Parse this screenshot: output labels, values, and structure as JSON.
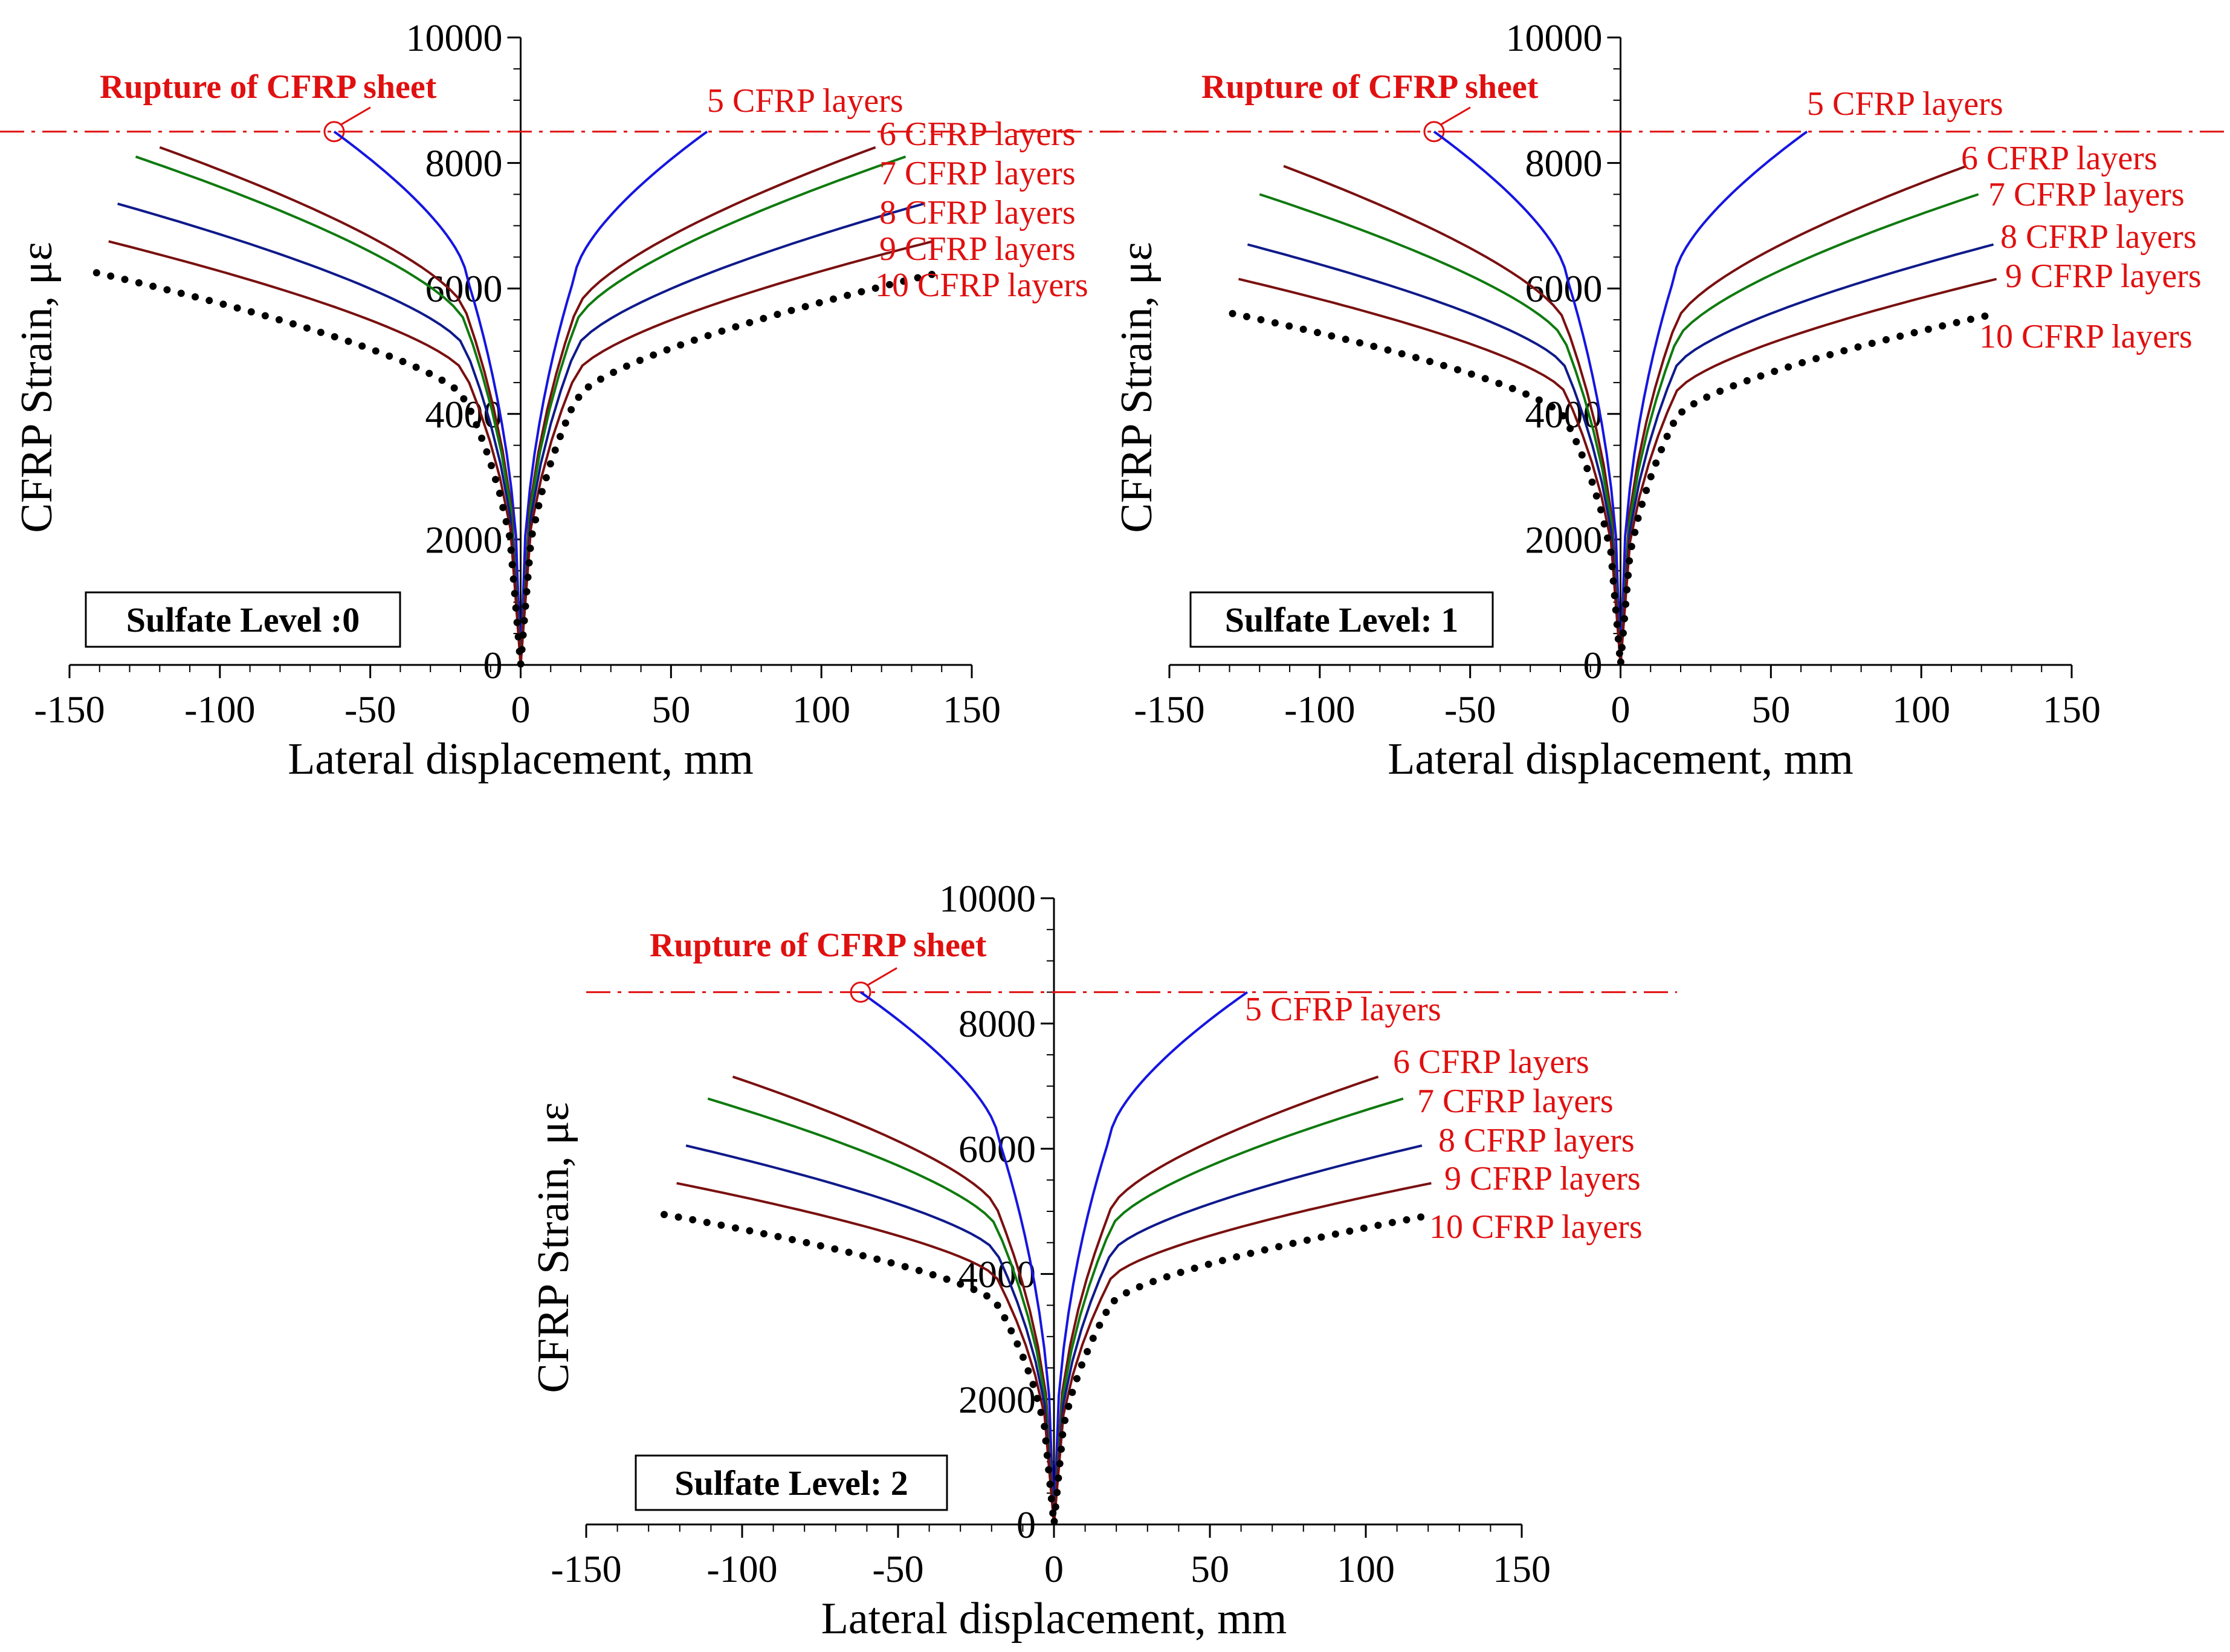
{
  "figure": {
    "rupture_label": "Rupture of CFRP sheet",
    "x_tick_labels": [
      "-150",
      "-100",
      "-50",
      "0",
      "50",
      "100",
      "150"
    ],
    "y_tick_labels": [
      "0",
      "2000",
      "4000",
      "6000",
      "8000",
      "10000"
    ]
  },
  "chart_data": [
    {
      "type": "line",
      "title": "Sulfate Level :0",
      "xlabel": "Lateral displacement, mm",
      "ylabel": "CFRP Strain, με",
      "xlim": [
        -150,
        150
      ],
      "ylim": [
        0,
        10000
      ],
      "rupture_strain": 8500,
      "rupture_marker": {
        "x": -62,
        "y": 8500
      },
      "series": [
        {
          "name": "5 CFRP layers",
          "color": "#1515e0",
          "style": "solid",
          "x_neg": -62,
          "y_end_neg": 8500,
          "x_pos": 62,
          "y_end_pos": 8500,
          "y_knee": 6200
        },
        {
          "name": "6 CFRP layers",
          "color": "#7a1010",
          "style": "solid",
          "x_neg": -120,
          "y_end_neg": 8250,
          "x_pos": 118,
          "y_end_pos": 8250,
          "y_knee": 5600
        },
        {
          "name": "7 CFRP layers",
          "color": "#0f7a0f",
          "style": "solid",
          "x_neg": -128,
          "y_end_neg": 8100,
          "x_pos": 128,
          "y_end_pos": 8100,
          "y_knee": 5400
        },
        {
          "name": "8 CFRP layers",
          "color": "#0f1a8a",
          "style": "solid",
          "x_neg": -134,
          "y_end_neg": 7350,
          "x_pos": 134,
          "y_end_pos": 7350,
          "y_knee": 5000
        },
        {
          "name": "9 CFRP layers",
          "color": "#7a1010",
          "style": "solid",
          "x_neg": -137,
          "y_end_neg": 6750,
          "x_pos": 137,
          "y_end_pos": 6750,
          "y_knee": 4600
        },
        {
          "name": "10 CFRP layers",
          "color": "#000000",
          "style": "dotted",
          "x_neg": -141,
          "y_end_neg": 6250,
          "x_pos": 139,
          "y_end_pos": 6250,
          "y_knee": 4200
        }
      ]
    },
    {
      "type": "line",
      "title": "Sulfate Level: 1",
      "xlabel": "Lateral displacement, mm",
      "ylabel": "CFRP Strain, με",
      "xlim": [
        -150,
        150
      ],
      "ylim": [
        0,
        10000
      ],
      "rupture_strain": 8500,
      "rupture_marker": {
        "x": -62,
        "y": 8500
      },
      "series": [
        {
          "name": "5 CFRP layers",
          "color": "#1515e0",
          "style": "solid",
          "x_neg": -62,
          "y_end_neg": 8500,
          "x_pos": 62,
          "y_end_pos": 8500,
          "y_knee": 6200
        },
        {
          "name": "6 CFRP layers",
          "color": "#7a1010",
          "style": "solid",
          "x_neg": -112,
          "y_end_neg": 7950,
          "x_pos": 115,
          "y_end_pos": 7950,
          "y_knee": 5400
        },
        {
          "name": "7 CFRP layers",
          "color": "#0f7a0f",
          "style": "solid",
          "x_neg": -120,
          "y_end_neg": 7500,
          "x_pos": 119,
          "y_end_pos": 7500,
          "y_knee": 5100
        },
        {
          "name": "8 CFRP layers",
          "color": "#0f1a8a",
          "style": "solid",
          "x_neg": -124,
          "y_end_neg": 6700,
          "x_pos": 124,
          "y_end_pos": 6700,
          "y_knee": 4700
        },
        {
          "name": "9 CFRP layers",
          "color": "#7a1010",
          "style": "solid",
          "x_neg": -127,
          "y_end_neg": 6150,
          "x_pos": 125,
          "y_end_pos": 6150,
          "y_knee": 4300
        },
        {
          "name": "10 CFRP layers",
          "color": "#000000",
          "style": "dotted",
          "x_neg": -129,
          "y_end_neg": 5600,
          "x_pos": 125,
          "y_end_pos": 5600,
          "y_knee": 3900
        }
      ]
    },
    {
      "type": "line",
      "title": "Sulfate Level: 2",
      "xlabel": "Lateral displacement, mm",
      "ylabel": "CFRP Strain, με",
      "xlim": [
        -150,
        150
      ],
      "ylim": [
        0,
        10000
      ],
      "rupture_strain": 8500,
      "rupture_marker": {
        "x": -62,
        "y": 8500
      },
      "series": [
        {
          "name": "5 CFRP layers",
          "color": "#1515e0",
          "style": "solid",
          "x_neg": -62,
          "y_end_neg": 8500,
          "x_pos": 62,
          "y_end_pos": 8500,
          "y_knee": 6200
        },
        {
          "name": "6 CFRP layers",
          "color": "#7a1010",
          "style": "solid",
          "x_neg": -103,
          "y_end_neg": 7150,
          "x_pos": 104,
          "y_end_pos": 7150,
          "y_knee": 5000
        },
        {
          "name": "7 CFRP layers",
          "color": "#0f7a0f",
          "style": "solid",
          "x_neg": -111,
          "y_end_neg": 6800,
          "x_pos": 112,
          "y_end_pos": 6800,
          "y_knee": 4700
        },
        {
          "name": "8 CFRP layers",
          "color": "#0f1a8a",
          "style": "solid",
          "x_neg": -118,
          "y_end_neg": 6050,
          "x_pos": 118,
          "y_end_pos": 6050,
          "y_knee": 4300
        },
        {
          "name": "9 CFRP layers",
          "color": "#7a1010",
          "style": "solid",
          "x_neg": -121,
          "y_end_neg": 5450,
          "x_pos": 121,
          "y_end_pos": 5450,
          "y_knee": 3900
        },
        {
          "name": "10 CFRP layers",
          "color": "#000000",
          "style": "dotted",
          "x_neg": -125,
          "y_end_neg": 4950,
          "x_pos": 122,
          "y_end_pos": 4950,
          "y_knee": 3500
        }
      ]
    }
  ]
}
